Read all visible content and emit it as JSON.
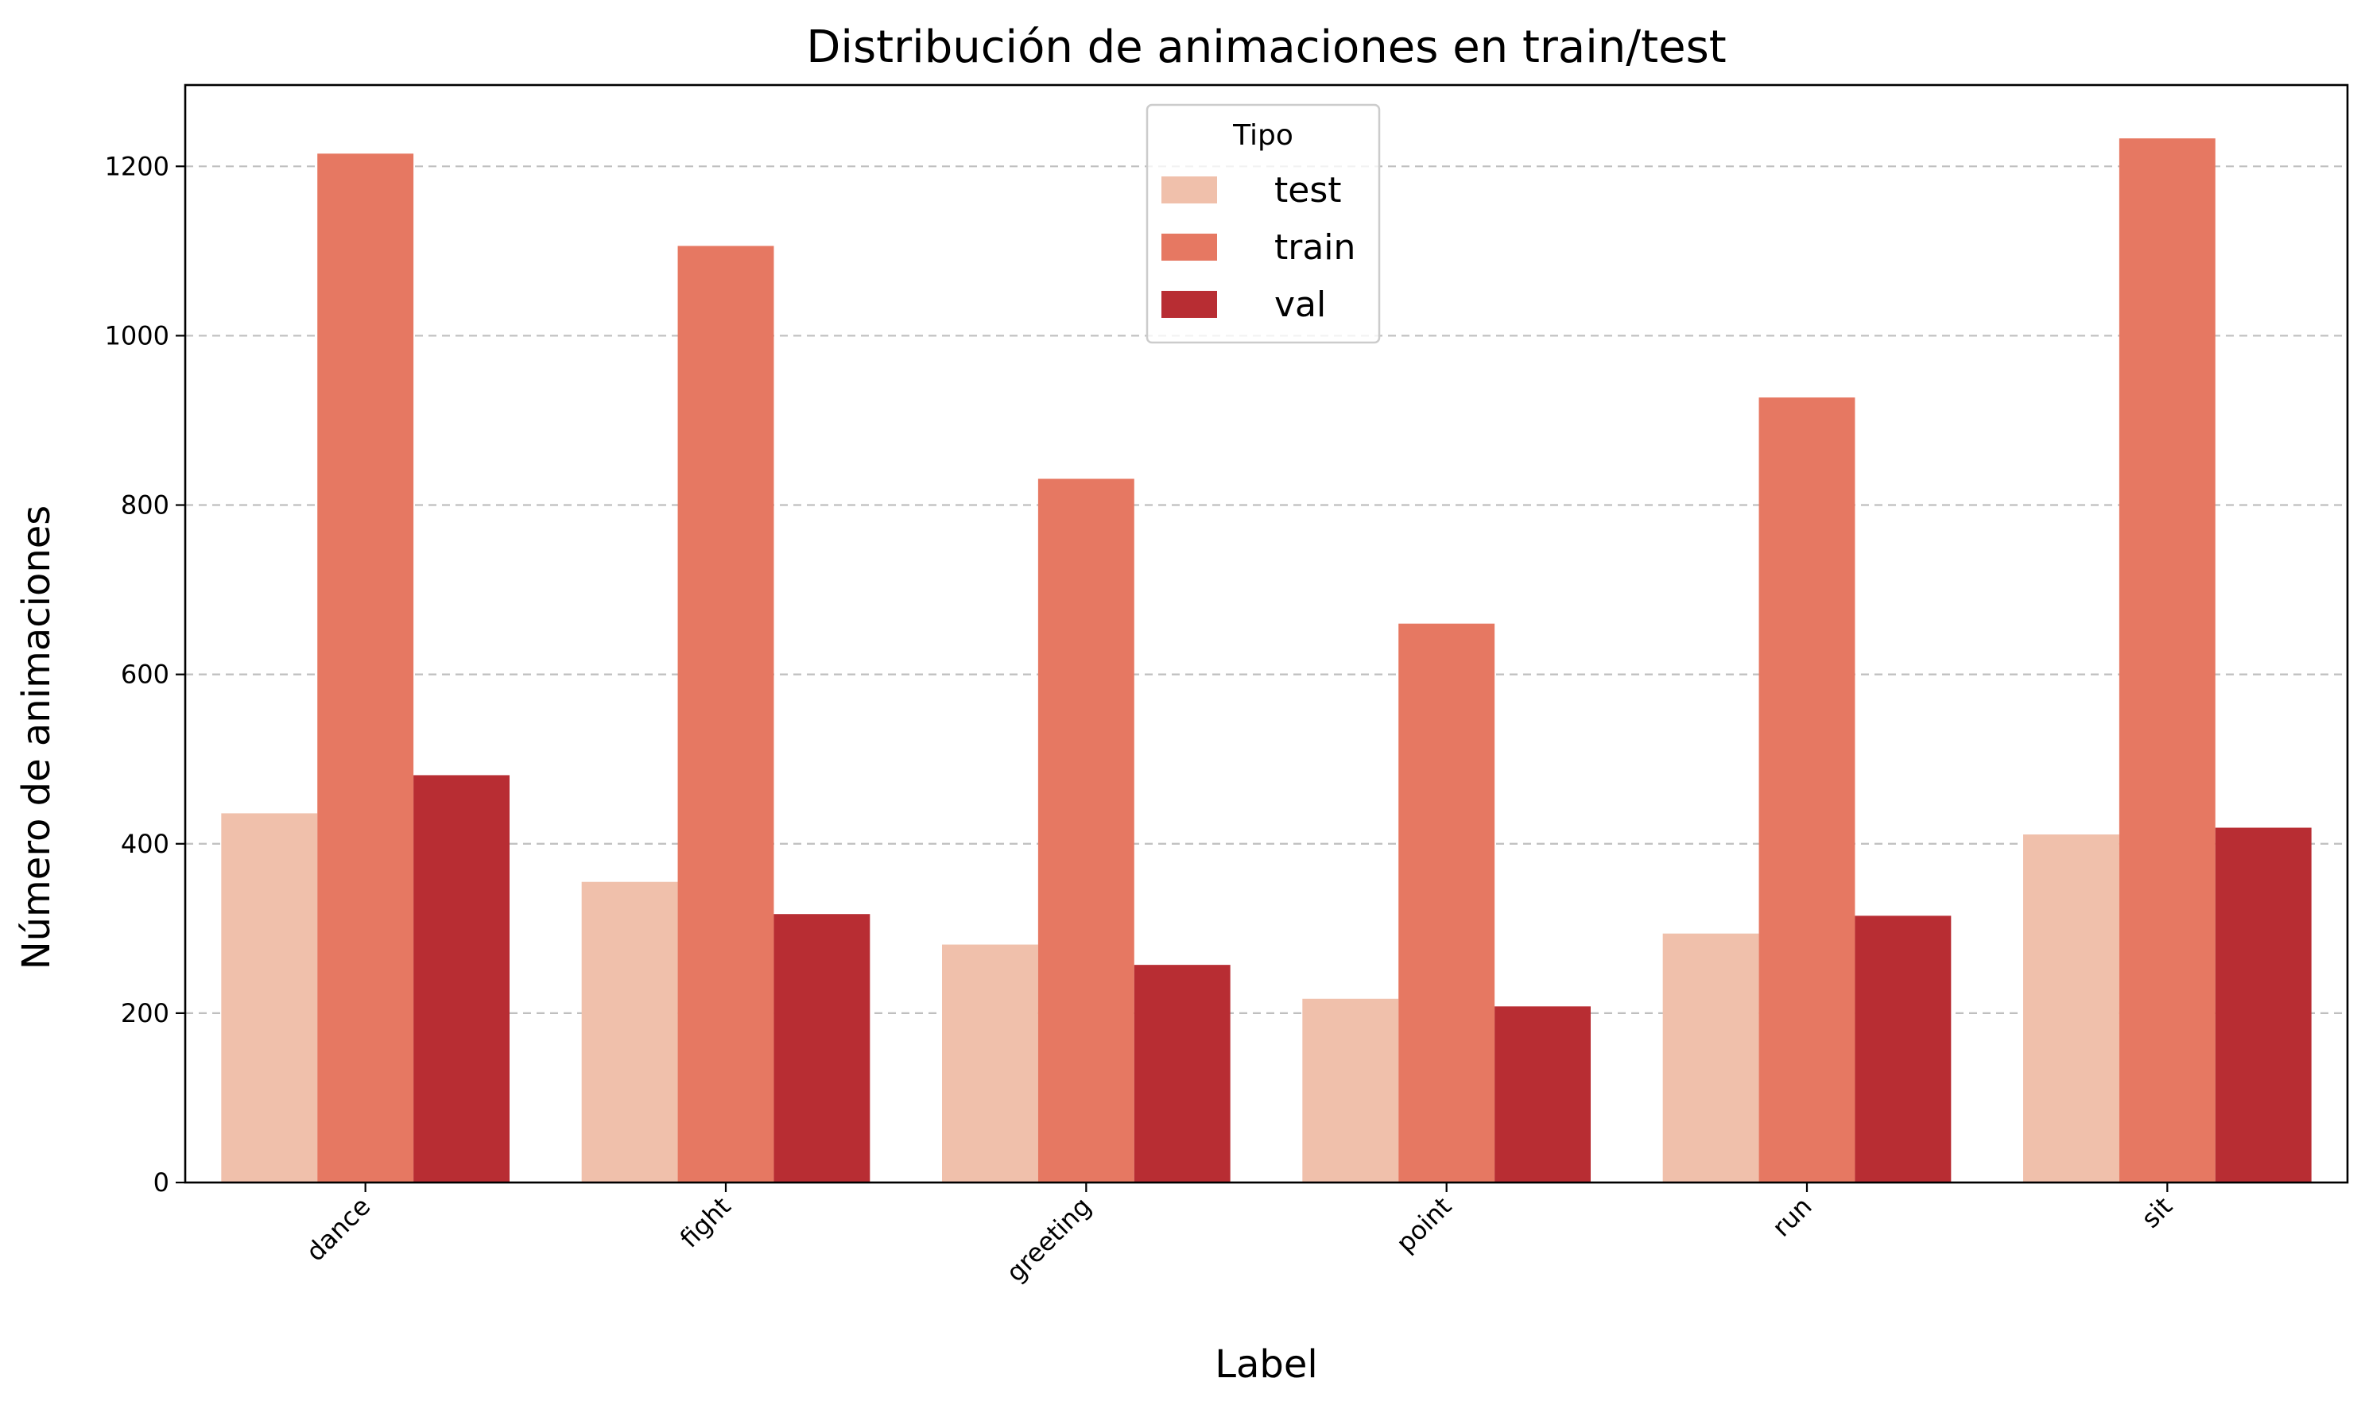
{
  "chart_data": {
    "type": "bar",
    "title": "Distribución de animaciones en train/test",
    "xlabel": "Label",
    "ylabel": "Número de animaciones",
    "categories": [
      "dance",
      "fight",
      "greeting",
      "point",
      "run",
      "sit"
    ],
    "series": [
      {
        "name": "test",
        "color": "#f0c0ab",
        "values": [
          436,
          355,
          281,
          217,
          294,
          411
        ]
      },
      {
        "name": "train",
        "color": "#e67862",
        "values": [
          1215,
          1106,
          831,
          660,
          927,
          1233
        ]
      },
      {
        "name": "val",
        "color": "#b82d33",
        "values": [
          481,
          317,
          257,
          208,
          315,
          419
        ]
      }
    ],
    "ylim": [
      0,
      1296
    ],
    "yticks": [
      0,
      200,
      400,
      600,
      800,
      1000,
      1200
    ],
    "grid": "y-dashed",
    "legend": {
      "title": "Tipo",
      "placement": "top-center"
    }
  }
}
